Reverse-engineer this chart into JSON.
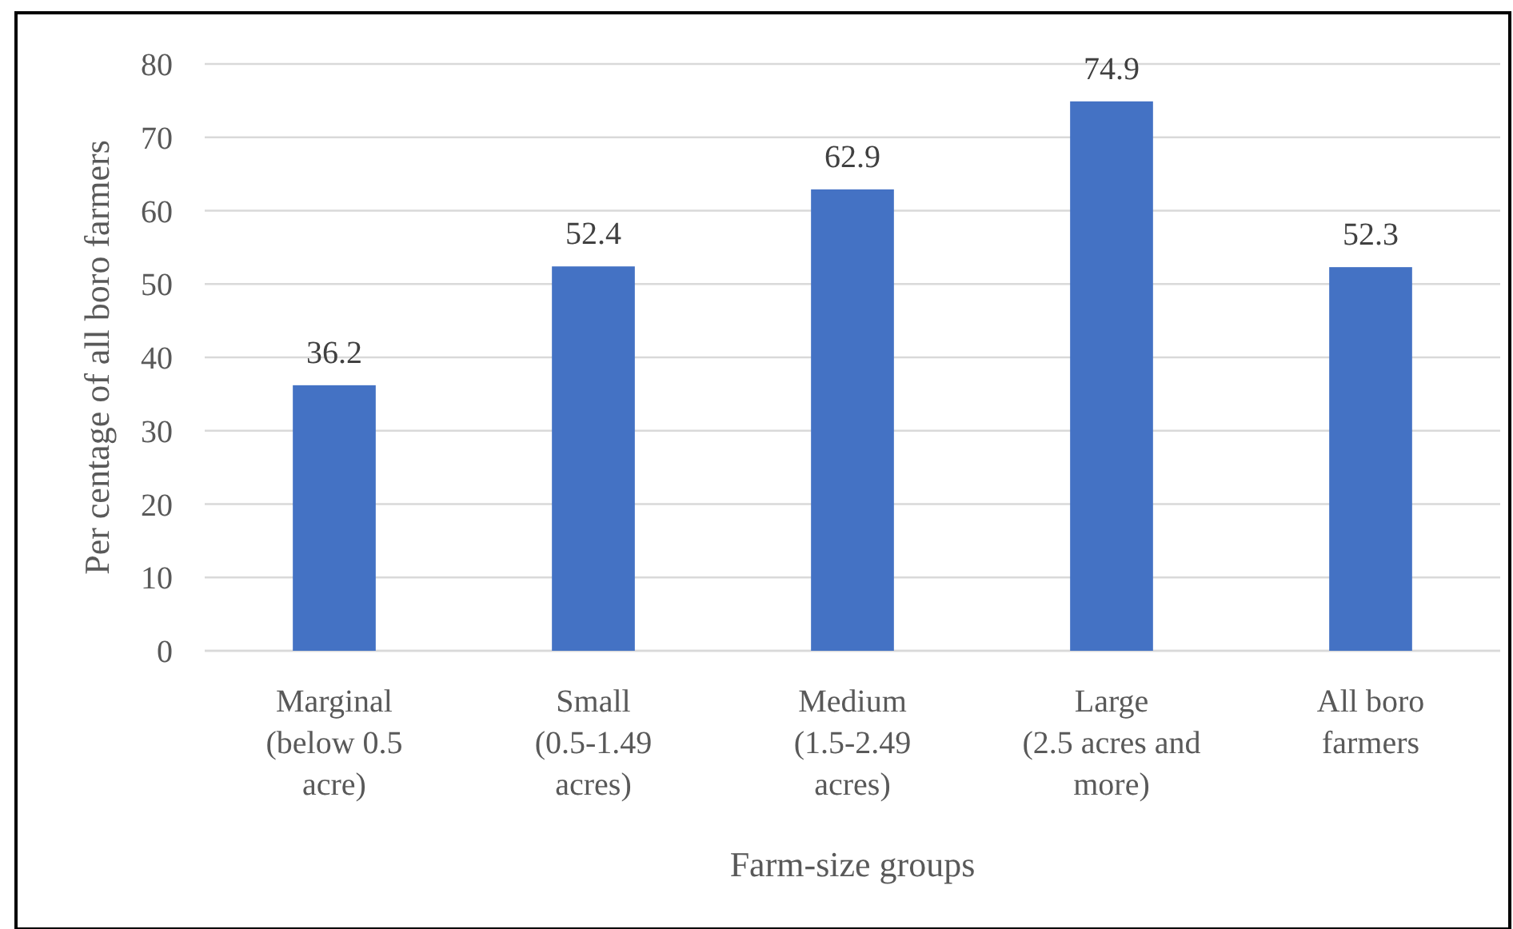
{
  "chart_data": {
    "type": "bar",
    "xlabel": "Farm-size groups",
    "ylabel": "Per centage of all boro farmers",
    "categories": [
      "Marginal\n(below 0.5\nacre)",
      "Small\n(0.5-1.49\nacres)",
      "Medium\n(1.5-2.49\nacres)",
      "Large\n(2.5 acres and\nmore)",
      "All boro\nfarmers"
    ],
    "values": [
      36.2,
      52.4,
      62.9,
      74.9,
      52.3
    ],
    "color": "#4472c4",
    "ylim": [
      0,
      80
    ],
    "yticks": [
      0,
      10,
      20,
      30,
      40,
      50,
      60,
      70,
      80
    ],
    "grid": "y",
    "data_labels": true
  }
}
